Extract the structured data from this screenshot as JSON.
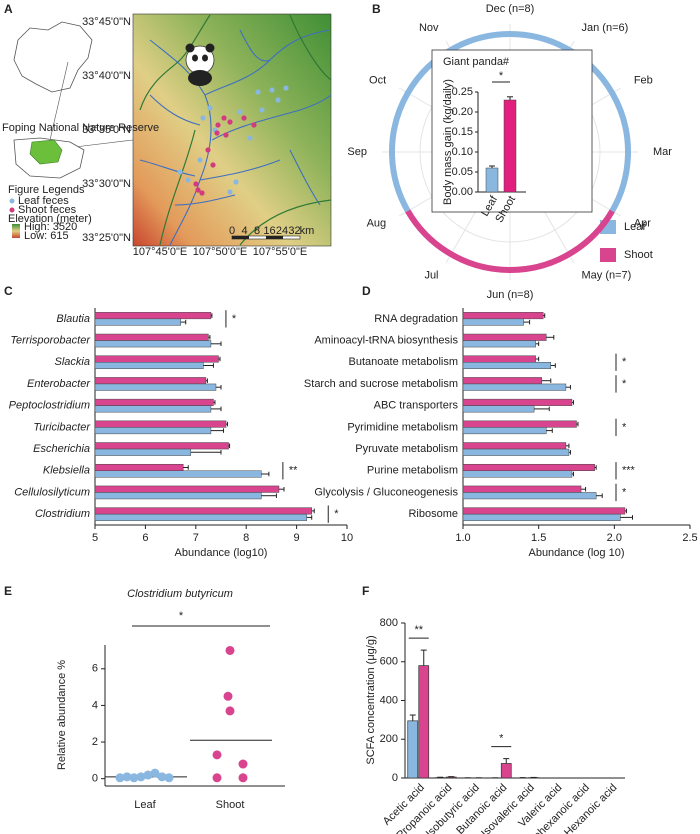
{
  "chart_data": [
    {
      "type": "map",
      "label": "A",
      "reserve": "Foping National Nature Reserve",
      "legend_title": "Figure Legends",
      "series": [
        {
          "name": "Leaf feces",
          "color": "#8ab7e0"
        },
        {
          "name": "Shoot feces",
          "color": "#d13b7f"
        }
      ],
      "elevation_title": "Elevation (meter)",
      "elevation_labels": [
        "High: 3520",
        "Low: 615"
      ],
      "lat_labels": [
        "33°45'0\"N",
        "33°40'0\"N",
        "33°35'0\"N",
        "33°30'0\"N",
        "33°25'0\"N"
      ],
      "lon_labels": [
        "107°45'0\"E",
        "107°50'0\"E",
        "107°55'0\"E"
      ],
      "scale_labels": [
        "0",
        "4",
        "8",
        "16",
        "24",
        "32",
        "km"
      ]
    },
    {
      "type": "radial",
      "label": "B",
      "categories": [
        "Dec (n=8)",
        "Jan (n=6)",
        "Feb",
        "Mar",
        "Apr",
        "May (n=7)",
        "Jun (n=8)",
        "Jul",
        "Aug",
        "Sep",
        "Oct",
        "Nov"
      ],
      "series": [
        {
          "name": "Leaf",
          "color": "#8ab7e0",
          "span": [
            "Aug",
            "Apr"
          ]
        },
        {
          "name": "Shoot",
          "color": "#d9448f",
          "span": [
            "Apr",
            "Aug"
          ]
        }
      ],
      "inset": {
        "type": "bar",
        "title": "Giant panda#",
        "ylabel": "Body mass gain (kg/daily)",
        "categories": [
          "Leaf",
          "Shoot"
        ],
        "values": [
          0.06,
          0.23
        ],
        "errors": [
          0.005,
          0.008
        ],
        "colors": [
          "#8ab7e0",
          "#e01f7e"
        ],
        "ylim": [
          0,
          0.25
        ],
        "yticks": [
          {
            "value": 0,
            "label": "0.00"
          },
          {
            "value": 0.05,
            "label": "0.05"
          },
          {
            "value": 0.1,
            "label": "0.10"
          },
          {
            "value": 0.15,
            "label": "0.15"
          },
          {
            "value": 0.2,
            "label": "0.20"
          },
          {
            "value": 0.25,
            "label": "0.25"
          }
        ],
        "significance": "*"
      }
    },
    {
      "type": "hbar",
      "label": "C",
      "label_style": "italic",
      "xlabel": "Abundance (log10)",
      "categories": [
        "Blautia",
        "Terrisporobacter",
        "Slackia",
        "Enterobacter",
        "Peptoclostridium",
        "Turicibacter",
        "Escherichia",
        "Klebsiella",
        "Cellulosilyticum",
        "Clostridium"
      ],
      "series": [
        {
          "color": "#d9448f",
          "values": [
            7.3,
            7.25,
            7.45,
            7.2,
            7.35,
            7.6,
            7.65,
            6.75,
            8.65,
            9.3
          ],
          "errors": [
            0.02,
            0.03,
            0.03,
            0.03,
            0.03,
            0.03,
            0.02,
            0.1,
            0.1,
            0.05
          ]
        },
        {
          "color": "#8ab7e0",
          "values": [
            6.7,
            7.3,
            7.15,
            7.4,
            7.3,
            7.3,
            6.9,
            8.3,
            8.3,
            9.2
          ],
          "errors": [
            0.1,
            0.2,
            0.2,
            0.1,
            0.2,
            0.25,
            0.6,
            0.15,
            0.3,
            0.1
          ]
        }
      ],
      "significance": [
        "*",
        null,
        null,
        null,
        null,
        null,
        null,
        "**",
        null,
        "*"
      ],
      "xlim": [
        5,
        10
      ],
      "xticks": [
        5,
        6,
        7,
        8,
        9,
        10
      ]
    },
    {
      "type": "hbar",
      "label": "D",
      "label_style": "normal",
      "xlabel": "Abundance (log 10)",
      "categories": [
        "RNA degradation",
        "Aminoacyl-tRNA biosynthesis",
        "Butanoate metabolism",
        "Starch and sucrose metabolism",
        "ABC transporters",
        "Pyrimidine metabolism",
        "Pyruvate metabolism",
        "Purine metabolism",
        "Glycolysis / Gluconeogenesis",
        "Ribosome"
      ],
      "series": [
        {
          "color": "#d9448f",
          "values": [
            1.53,
            1.55,
            1.48,
            1.52,
            1.72,
            1.75,
            1.68,
            1.87,
            1.78,
            2.07
          ],
          "errors": [
            0.01,
            0.05,
            0.02,
            0.06,
            0.01,
            0.01,
            0.02,
            0.01,
            0.03,
            0.01
          ]
        },
        {
          "color": "#8ab7e0",
          "values": [
            1.4,
            1.48,
            1.58,
            1.68,
            1.47,
            1.55,
            1.7,
            1.72,
            1.88,
            2.04
          ],
          "errors": [
            0.04,
            0.02,
            0.03,
            0.03,
            0.1,
            0.04,
            0.01,
            0.01,
            0.04,
            0.08
          ]
        }
      ],
      "significance": [
        null,
        null,
        "*",
        "*",
        null,
        "*",
        null,
        "***",
        "*",
        null
      ],
      "xlim": [
        1,
        2.5
      ],
      "xticks": [
        {
          "value": 1,
          "label": "1.0"
        },
        {
          "value": 1.5,
          "label": "1.5"
        },
        {
          "value": 2,
          "label": "2.0"
        },
        {
          "value": 2.5,
          "label": "2.5"
        }
      ]
    },
    {
      "type": "dots",
      "label": "E",
      "title": "Clostridium butyricum",
      "ylabel": "Relative abundance %",
      "categories": [
        "Leaf",
        "Shoot"
      ],
      "groups": [
        {
          "color": "#8ab7e0",
          "values": [
            0.05,
            0.1,
            0.05,
            0.1,
            0.2,
            0.3,
            0.1,
            0.05
          ]
        },
        {
          "color": "#d9448f",
          "values": [
            7.0,
            4.5,
            3.7,
            1.3,
            0.8,
            0.05,
            0.05
          ]
        }
      ],
      "means": [
        0.1,
        2.1
      ],
      "significance": "*",
      "ylim": [
        -0.4,
        7.3
      ],
      "yticks": [
        0,
        2,
        4,
        6
      ]
    },
    {
      "type": "bar",
      "label": "F",
      "ylabel": "SCFA concentration (μg/g)",
      "categories": [
        "Acetic acid",
        "Propanoic acid",
        "Isobutyric acid",
        "Butanoic acid",
        "Isovaleric acid",
        "Valeric acid",
        "Isohexanoic acid",
        "Hexanoic acid"
      ],
      "series": [
        {
          "color": "#8ab7e0",
          "values": [
            295,
            2,
            1,
            1,
            1,
            0,
            0,
            0
          ],
          "errors": [
            30,
            2,
            0,
            0,
            1,
            0,
            0,
            0
          ]
        },
        {
          "color": "#d9448f",
          "values": [
            580,
            5,
            1,
            75,
            2,
            0,
            0,
            0
          ],
          "errors": [
            80,
            2,
            0,
            25,
            1,
            0,
            0,
            0
          ]
        }
      ],
      "significance": [
        "**",
        null,
        null,
        "*",
        null,
        null,
        null,
        null
      ],
      "ylim": [
        0,
        800
      ],
      "yticks": [
        0,
        200,
        400,
        600,
        800
      ]
    }
  ]
}
